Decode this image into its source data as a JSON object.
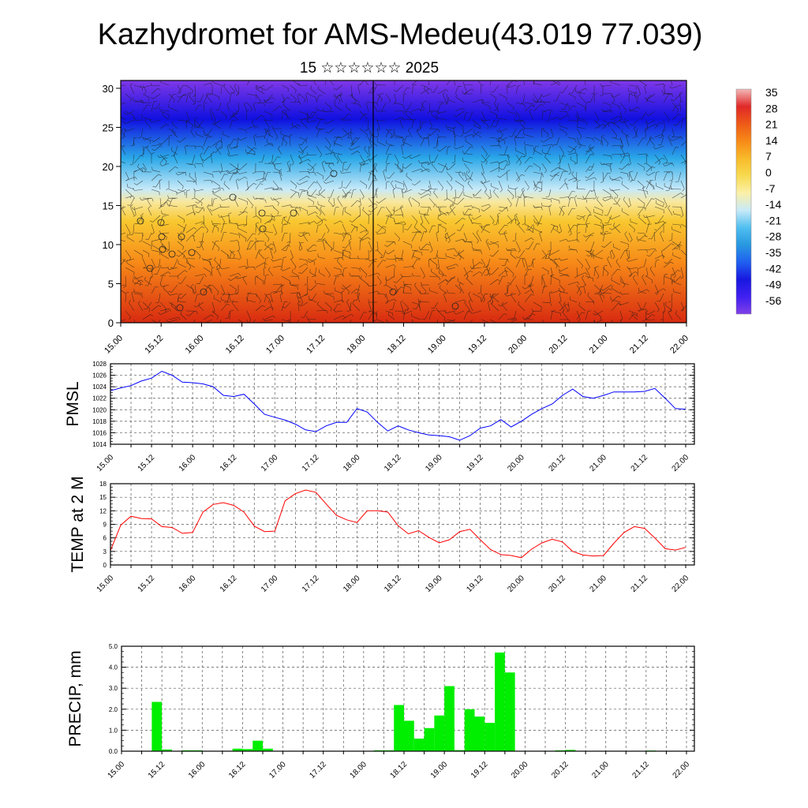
{
  "page": {
    "title": "Kazhydromet for AMS-Medeu(43.019 77.039)",
    "subtitle": "15 ☆☆☆☆☆☆ 2025"
  },
  "time_ticks": [
    "15.00",
    "15.12",
    "16.00",
    "16.12",
    "17.00",
    "17.12",
    "18.00",
    "18.12",
    "19.00",
    "19.12",
    "20.00",
    "20.12",
    "21.00",
    "21.12",
    "22.00"
  ],
  "chart_data": [
    {
      "id": "profile",
      "type": "heatmap",
      "title": "",
      "ylabel": "",
      "ylim": [
        0,
        31
      ],
      "yticks": [
        0,
        5,
        10,
        15,
        20,
        25,
        30
      ],
      "colorbar": {
        "labels": [
          "35",
          "28",
          "21",
          "14",
          "7",
          "0",
          "-7",
          "-14",
          "-21",
          "-28",
          "-35",
          "-42",
          "-49",
          "-56"
        ],
        "colors": [
          "#f4b8b8",
          "#e02828",
          "#ee5a18",
          "#f78a18",
          "#f8ba2a",
          "#f8da50",
          "#fbf0a8",
          "#c8eaf8",
          "#50bff0",
          "#2898e0",
          "#2060f0",
          "#1818e0",
          "#4020f0",
          "#8040e8"
        ]
      },
      "overlay": "wind barbs"
    },
    {
      "id": "pmsl",
      "type": "line",
      "ylabel": "PMSL",
      "ylim": [
        1014,
        1028
      ],
      "yticks": [
        1014,
        1016,
        1018,
        1020,
        1022,
        1024,
        1026,
        1028
      ],
      "color": "#0000ff",
      "x": [
        0,
        3,
        6,
        9,
        12,
        15,
        18,
        21,
        24,
        27,
        30,
        33,
        36,
        39,
        42,
        45,
        48,
        51,
        54,
        57,
        60,
        63,
        66,
        69,
        72,
        75,
        78,
        81,
        84,
        87,
        90,
        93,
        96,
        99,
        102,
        105,
        108,
        111,
        114,
        117,
        120,
        123,
        126,
        129,
        132,
        135,
        138,
        141,
        144,
        147,
        150,
        153,
        156,
        159,
        162,
        165,
        168
      ],
      "values": [
        1023.3,
        1023.8,
        1024.2,
        1025.0,
        1025.5,
        1026.7,
        1026.0,
        1024.8,
        1024.7,
        1024.5,
        1024.0,
        1022.5,
        1022.3,
        1022.7,
        1021.0,
        1019.2,
        1018.7,
        1018.2,
        1017.5,
        1016.5,
        1016.2,
        1017.2,
        1017.8,
        1017.8,
        1020.2,
        1019.6,
        1017.8,
        1016.3,
        1017.2,
        1016.5,
        1016.0,
        1015.6,
        1015.5,
        1015.3,
        1014.7,
        1015.5,
        1016.8,
        1017.2,
        1018.3,
        1017.0,
        1018.0,
        1019.2,
        1020.2,
        1021.0,
        1022.5,
        1023.6,
        1022.3,
        1022.0,
        1022.5,
        1023.1,
        1023.1,
        1023.1,
        1023.2,
        1023.7,
        1022.0,
        1020.2,
        1020.1
      ]
    },
    {
      "id": "temp",
      "type": "line",
      "ylabel": "TEMP at 2 M",
      "ylim": [
        0,
        18
      ],
      "yticks": [
        0,
        3,
        6,
        9,
        12,
        15,
        18
      ],
      "color": "#ff0000",
      "x": [
        0,
        3,
        6,
        9,
        12,
        15,
        18,
        21,
        24,
        27,
        30,
        33,
        36,
        39,
        42,
        45,
        48,
        51,
        54,
        57,
        60,
        63,
        66,
        69,
        72,
        75,
        78,
        81,
        84,
        87,
        90,
        93,
        96,
        99,
        102,
        105,
        108,
        111,
        114,
        117,
        120,
        123,
        126,
        129,
        132,
        135,
        138,
        141,
        144,
        147,
        150,
        153,
        156,
        159,
        162,
        165,
        168
      ],
      "values": [
        3.2,
        8.8,
        10.8,
        10.3,
        10.2,
        8.5,
        8.3,
        7.0,
        7.2,
        11.7,
        13.4,
        13.8,
        13.2,
        11.7,
        8.6,
        7.4,
        7.5,
        14.2,
        15.8,
        16.6,
        16.1,
        13.5,
        11.0,
        10.0,
        9.4,
        12.0,
        12.0,
        11.7,
        8.7,
        6.9,
        7.6,
        6.1,
        4.9,
        5.6,
        7.4,
        7.9,
        5.6,
        3.4,
        2.3,
        2.1,
        1.6,
        3.5,
        4.9,
        5.7,
        5.1,
        3.0,
        2.2,
        2.0,
        2.1,
        4.8,
        7.2,
        8.5,
        8.1,
        6.0,
        3.6,
        3.3,
        3.9
      ]
    },
    {
      "id": "precip",
      "type": "bar",
      "ylabel": "PRECIP, mm",
      "ylim": [
        0,
        5
      ],
      "yticks": [
        "0.0",
        "1.0",
        "2.0",
        "3.0",
        "4.0",
        "5.0"
      ],
      "color": "#00ee00",
      "bar_hours": 3,
      "x": [
        9,
        12,
        18,
        21,
        33,
        36,
        39,
        42,
        75,
        78,
        81,
        84,
        87,
        90,
        93,
        96,
        99,
        102,
        105,
        108,
        111,
        114,
        117,
        120,
        123,
        126,
        129,
        132,
        156
      ],
      "values": [
        2.35,
        0.08,
        0.04,
        0.04,
        0.12,
        0.1,
        0.5,
        0.12,
        0.04,
        0.04,
        2.2,
        1.45,
        0.6,
        1.1,
        1.7,
        3.1,
        0.05,
        2.0,
        1.65,
        1.35,
        4.7,
        3.75,
        0.02,
        0.02,
        0.02,
        0.02,
        0.04,
        0.06,
        0.03
      ]
    }
  ]
}
